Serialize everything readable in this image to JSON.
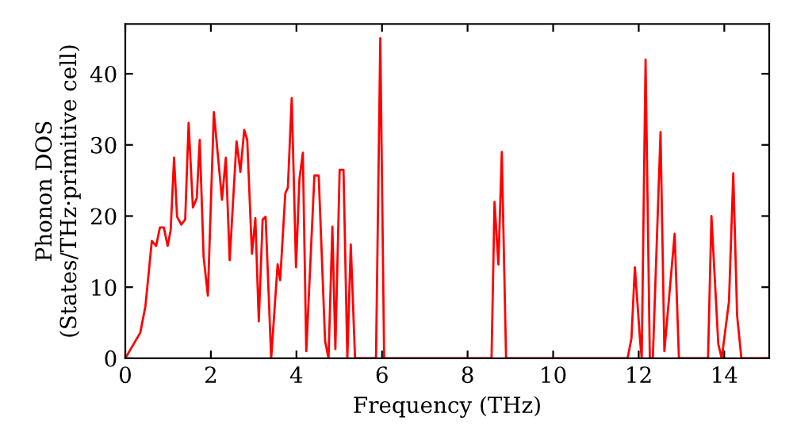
{
  "chart_data": {
    "type": "line",
    "xlabel": "Frequency (THz)",
    "ylabel": "Phonon DOS\n(States/THz·primitive cell)",
    "x": [
      0,
      0.35,
      0.47,
      0.62,
      0.72,
      0.81,
      0.9,
      0.99,
      1.06,
      1.14,
      1.21,
      1.31,
      1.4,
      1.48,
      1.58,
      1.67,
      1.74,
      1.83,
      1.93,
      2.07,
      2.26,
      2.35,
      2.44,
      2.6,
      2.69,
      2.78,
      2.85,
      2.96,
      3.04,
      3.12,
      3.21,
      3.28,
      3.41,
      3.56,
      3.62,
      3.74,
      3.8,
      3.89,
      3.99,
      4.07,
      4.15,
      4.23,
      4.42,
      4.52,
      4.67,
      4.75,
      4.84,
      4.91,
      5.01,
      5.1,
      5.19,
      5.27,
      5.37,
      5.86,
      5.96,
      6.05,
      8.56,
      8.63,
      8.72,
      8.8,
      8.9,
      11.74,
      11.83,
      11.91,
      12.04,
      12.07,
      12.16,
      12.26,
      12.33,
      12.51,
      12.6,
      12.84,
      12.94,
      13.62,
      13.7,
      13.86,
      13.94,
      14.11,
      14.21,
      14.3,
      14.4,
      15.04
    ],
    "series": [
      {
        "color": "#ff0000",
        "values": [
          0,
          3.6,
          7.3,
          16.5,
          15.8,
          18.4,
          18.4,
          15.8,
          18,
          28.2,
          19.9,
          18.8,
          19.5,
          33.1,
          21.2,
          22.5,
          30.7,
          14.3,
          8.8,
          34.6,
          22.3,
          28.2,
          13.8,
          30.5,
          26.2,
          32.1,
          30.7,
          14.7,
          19.7,
          5.2,
          19.5,
          19.9,
          0,
          13.2,
          11,
          23.2,
          24,
          36.6,
          12.8,
          25.2,
          28.9,
          1,
          25.7,
          25.7,
          2.4,
          0,
          18.5,
          1.3,
          26.5,
          26.5,
          0,
          16,
          0,
          0,
          45,
          0,
          0,
          22,
          13.2,
          29,
          0,
          0,
          2.8,
          12.8,
          1.9,
          0,
          42,
          0,
          0,
          31.8,
          1,
          17.5,
          0,
          0,
          20,
          2,
          0,
          8,
          26,
          6,
          0,
          0
        ]
      }
    ],
    "xlim": [
      0,
      15.05
    ],
    "ylim": [
      0,
      47
    ],
    "xticks": [
      0,
      2,
      4,
      6,
      8,
      10,
      12,
      14
    ],
    "yticks": [
      0,
      10,
      20,
      30,
      40
    ],
    "grid": false,
    "legend": false,
    "marker": "none",
    "line_style": "solid"
  }
}
